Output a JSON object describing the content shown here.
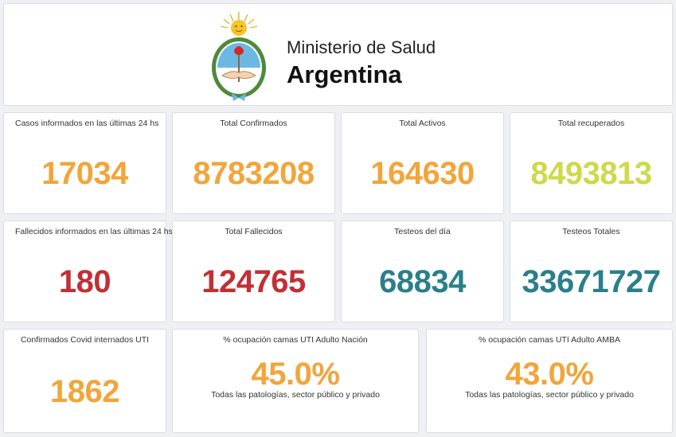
{
  "header": {
    "ministry": "Ministerio de Salud",
    "country": "Argentina"
  },
  "colors": {
    "orange": "#f2a53a",
    "yellow_green": "#cfd94a",
    "red": "#c22f36",
    "teal": "#2b7f8a"
  },
  "stats": {
    "cases_24h": {
      "label": "Casos informados en las últimas 24 hs",
      "value": "17034"
    },
    "total_confirmed": {
      "label": "Total Confirmados",
      "value": "8783208"
    },
    "total_active": {
      "label": "Total Activos",
      "value": "164630"
    },
    "total_recovered": {
      "label": "Total recuperados",
      "value": "8493813"
    },
    "deaths_24h": {
      "label": "Fallecidos informados en las últimas 24 hs",
      "value": "180"
    },
    "total_deaths": {
      "label": "Total Fallecidos",
      "value": "124765"
    },
    "tests_day": {
      "label": "Testeos del día",
      "value": "68834"
    },
    "tests_total": {
      "label": "Testeos Totales",
      "value": "33671727"
    },
    "icu_confirmed": {
      "label": "Confirmados Covid internados UTI",
      "value": "1862"
    },
    "icu_nation": {
      "label": "% ocupación camas UTI Adulto Nación",
      "value": "45.0%",
      "note": "Todas las patologías, sector público y privado"
    },
    "icu_amba": {
      "label": "% ocupación camas UTI Adulto AMBA",
      "value": "43.0%",
      "note": "Todas las patologías, sector público y privado"
    }
  }
}
